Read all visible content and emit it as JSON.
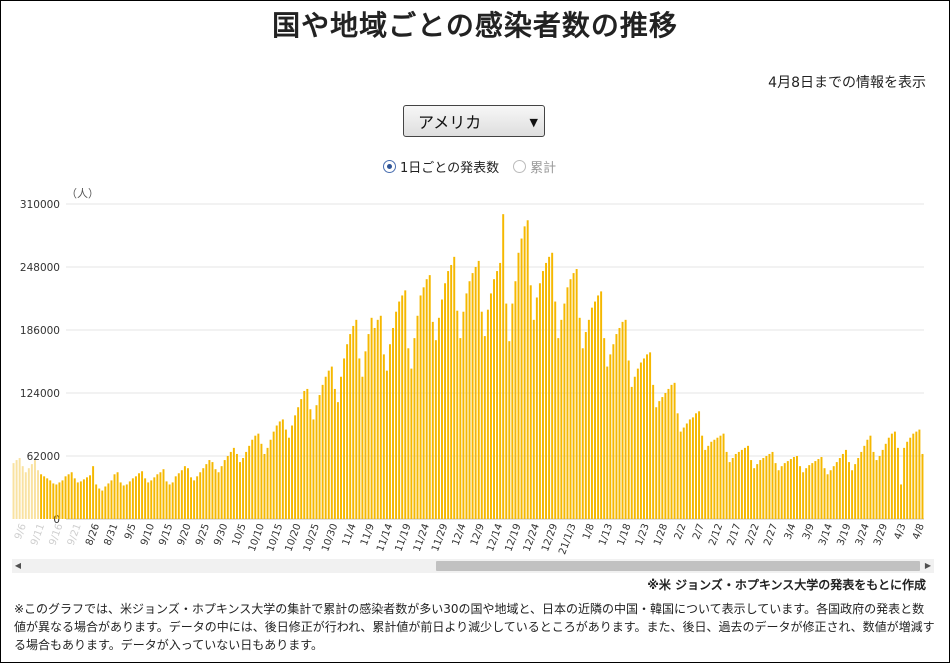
{
  "title": "国や地域ごとの感染者数の推移",
  "updated": "4月8日までの情報を表示",
  "country_select": {
    "value": "アメリカ",
    "arrow_icon": "triangle-down-icon"
  },
  "mode_options": {
    "daily": "1日ごとの発表数",
    "cumulative": "累計"
  },
  "source": "※米 ジョンズ・ホプキンス大学の発表をもとに作成",
  "note": "※このグラフでは、米ジョンズ・ホプキンス大学の集計で累計の感染者数が多い30の国や地域と、日本の近隣の中国・韓国について表示しています。各国政府の発表と数値が異なる場合があります。データの中には、後日修正が行われ、累計値が前日より減少しているところがあります。また、後日、過去のデータが修正され、数値が増減する場合もあります。データが入っていない日もあります。",
  "colors": {
    "bar": "#f5b800",
    "bar_faded": "#f9e2a0",
    "grid": "#e6e6e6"
  },
  "chart_data": {
    "type": "bar",
    "title": "",
    "ylabel": "（人）",
    "ylim": [
      0,
      310000
    ],
    "yticks": [
      0,
      62000,
      124000,
      186000,
      248000,
      310000
    ],
    "ytick_labels": [
      "0",
      "62000",
      "124000",
      "186000",
      "248000",
      "310000"
    ],
    "x_start": "2020-09-12",
    "x_end": "2021-04-08",
    "faded_until": "2020-09-20",
    "x_tick_labels": [
      "9/6",
      "9/11",
      "9/16",
      "9/21",
      "8/26",
      "8/31",
      "9/5",
      "9/10",
      "9/15",
      "9/20",
      "9/25",
      "9/30",
      "10/5",
      "10/10",
      "10/15",
      "10/20",
      "10/25",
      "10/30",
      "11/4",
      "11/9",
      "11/14",
      "11/19",
      "11/24",
      "11/29",
      "12/4",
      "12/9",
      "12/14",
      "12/19",
      "12/24",
      "12/29",
      "21/1/3",
      "1/8",
      "1/13",
      "1/18",
      "1/23",
      "1/28",
      "2/2",
      "2/7",
      "2/12",
      "2/17",
      "2/22",
      "2/27",
      "3/4",
      "3/9",
      "3/14",
      "3/19",
      "3/24",
      "3/29",
      "4/3",
      "4/8"
    ],
    "series": [
      {
        "name": "",
        "values": [
          55000,
          58000,
          60000,
          52000,
          46000,
          50000,
          54000,
          58000,
          48000,
          44000,
          42000,
          40000,
          38000,
          35000,
          34000,
          36000,
          38000,
          42000,
          44000,
          46000,
          40000,
          36000,
          37000,
          39000,
          41000,
          43000,
          52000,
          34000,
          30000,
          28000,
          32000,
          35000,
          38000,
          44000,
          46000,
          36000,
          33000,
          34000,
          37000,
          40000,
          42000,
          45000,
          47000,
          40000,
          36000,
          38000,
          41000,
          44000,
          46000,
          49000,
          37000,
          34000,
          36000,
          42000,
          45000,
          48000,
          52000,
          50000,
          41000,
          38000,
          42000,
          46000,
          50000,
          54000,
          58000,
          56000,
          49000,
          46000,
          52000,
          58000,
          62000,
          66000,
          70000,
          64000,
          56000,
          60000,
          66000,
          72000,
          78000,
          82000,
          84000,
          74000,
          64000,
          70000,
          78000,
          86000,
          92000,
          96000,
          98000,
          88000,
          80000,
          92000,
          102000,
          110000,
          118000,
          126000,
          128000,
          108000,
          98000,
          112000,
          122000,
          132000,
          140000,
          146000,
          150000,
          128000,
          115000,
          140000,
          158000,
          172000,
          182000,
          190000,
          196000,
          158000,
          140000,
          165000,
          182000,
          198000,
          188000,
          196000,
          200000,
          162000,
          146000,
          172000,
          188000,
          204000,
          214000,
          220000,
          225000,
          168000,
          148000,
          178000,
          200000,
          220000,
          228000,
          236000,
          240000,
          194000,
          176000,
          198000,
          216000,
          232000,
          244000,
          250000,
          258000,
          205000,
          178000,
          204000,
          222000,
          234000,
          242000,
          248000,
          254000,
          204000,
          180000,
          206000,
          222000,
          236000,
          244000,
          252000,
          300000,
          212000,
          175000,
          212000,
          234000,
          262000,
          276000,
          288000,
          294000,
          230000,
          196000,
          218000,
          232000,
          244000,
          252000,
          258000,
          262000,
          214000,
          178000,
          196000,
          212000,
          228000,
          236000,
          242000,
          246000,
          198000,
          168000,
          184000,
          196000,
          208000,
          214000,
          220000,
          224000,
          178000,
          150000,
          162000,
          172000,
          182000,
          188000,
          194000,
          196000,
          156000,
          130000,
          140000,
          148000,
          154000,
          158000,
          162000,
          164000,
          132000,
          110000,
          116000,
          120000,
          124000,
          128000,
          132000,
          134000,
          104000,
          86000,
          90000,
          94000,
          98000,
          100000,
          104000,
          106000,
          82000,
          68000,
          72000,
          76000,
          78000,
          80000,
          82000,
          84000,
          66000,
          56000,
          60000,
          64000,
          66000,
          68000,
          70000,
          72000,
          58000,
          50000,
          54000,
          58000,
          60000,
          62000,
          64000,
          66000,
          55000,
          48000,
          52000,
          55000,
          57000,
          59000,
          61000,
          62000,
          52000,
          46000,
          50000,
          53000,
          55000,
          57000,
          59000,
          61000,
          50000,
          44000,
          48000,
          52000,
          56000,
          60000,
          64000,
          68000,
          56000,
          48000,
          54000,
          60000,
          66000,
          72000,
          78000,
          82000,
          66000,
          58000,
          62000,
          68000,
          74000,
          80000,
          84000,
          86000,
          70000,
          34000,
          70000,
          76000,
          80000,
          84000,
          86000,
          88000,
          64000
        ]
      }
    ]
  }
}
